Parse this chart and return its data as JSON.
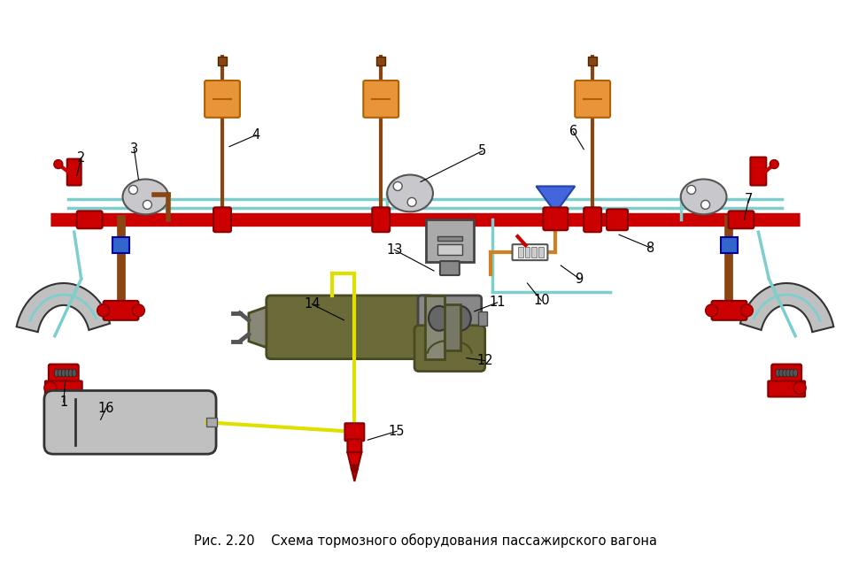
{
  "title": "Рис. 2.20    Схема тормозного оборудования пассажирского вагона",
  "bg_color": "#ffffff",
  "fig_width": 9.61,
  "fig_height": 6.34,
  "dpi": 100
}
